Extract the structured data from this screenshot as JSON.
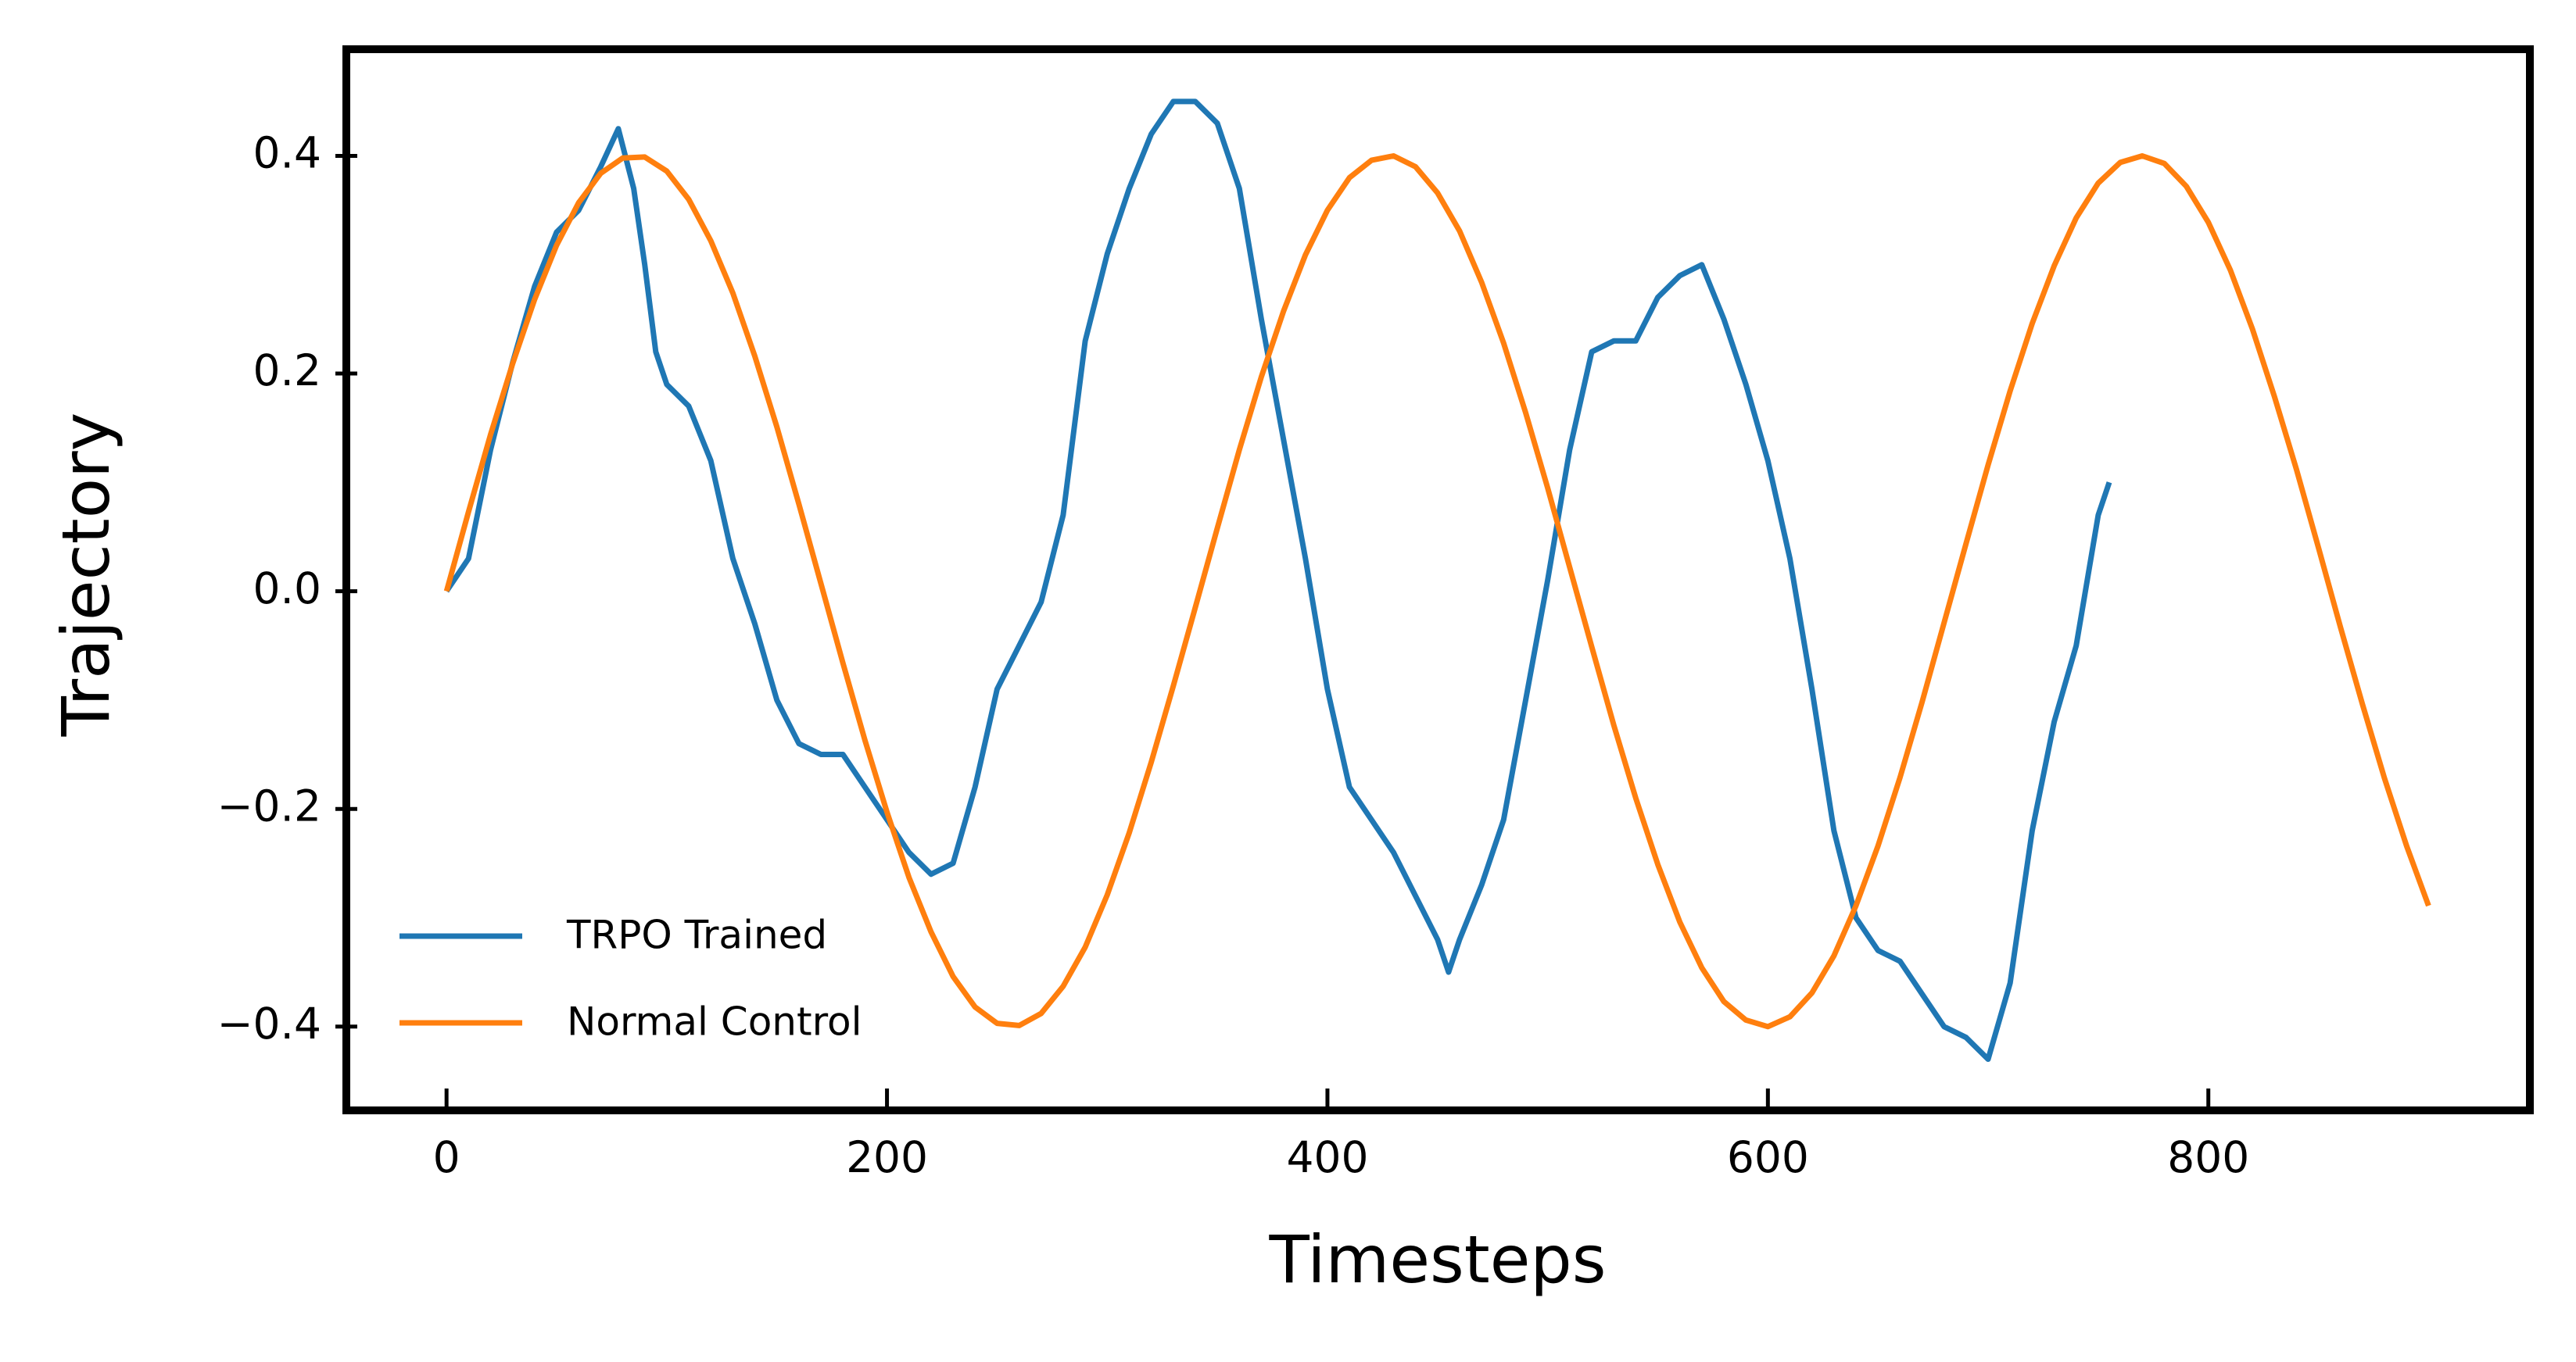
{
  "chart_data": {
    "type": "line",
    "x_label": "Timesteps",
    "y_label": "Trajectory",
    "xlim": [
      -45.5,
      946
    ],
    "ylim": [
      -0.477,
      0.498
    ],
    "xticks": [
      0,
      200,
      400,
      600,
      800
    ],
    "yticks": [
      {
        "value": -0.4,
        "label": "−0.4"
      },
      {
        "value": -0.2,
        "label": "−0.2"
      },
      {
        "value": 0,
        "label": "0.0"
      },
      0.2,
      0.4
    ],
    "grid": false,
    "legend": "lower left",
    "series": [
      {
        "name": "TRPO Trained",
        "color": "#1f77b4",
        "x": [
          0,
          10,
          20,
          30,
          40,
          50,
          60,
          70,
          78,
          85,
          90,
          95,
          100,
          110,
          120,
          130,
          140,
          150,
          160,
          170,
          180,
          190,
          200,
          210,
          220,
          230,
          240,
          250,
          260,
          270,
          280,
          290,
          300,
          310,
          320,
          330,
          340,
          350,
          360,
          370,
          380,
          390,
          400,
          410,
          420,
          430,
          440,
          450,
          455,
          460,
          470,
          480,
          490,
          500,
          510,
          520,
          530,
          540,
          550,
          560,
          570,
          580,
          590,
          600,
          610,
          620,
          630,
          640,
          650,
          660,
          670,
          680,
          690,
          700,
          710,
          720,
          730,
          740,
          750,
          755
        ],
        "values": [
          0.0,
          0.03,
          0.13,
          0.21,
          0.28,
          0.33,
          0.35,
          0.39,
          0.425,
          0.37,
          0.3,
          0.22,
          0.19,
          0.17,
          0.12,
          0.03,
          -0.03,
          -0.1,
          -0.14,
          -0.15,
          -0.15,
          -0.18,
          -0.21,
          -0.24,
          -0.26,
          -0.25,
          -0.18,
          -0.09,
          -0.05,
          -0.01,
          0.07,
          0.23,
          0.31,
          0.37,
          0.42,
          0.45,
          0.45,
          0.43,
          0.37,
          0.25,
          0.14,
          0.03,
          -0.09,
          -0.18,
          -0.21,
          -0.24,
          -0.28,
          -0.32,
          -0.35,
          -0.32,
          -0.27,
          -0.21,
          -0.1,
          0.01,
          0.13,
          0.22,
          0.23,
          0.23,
          0.27,
          0.29,
          0.3,
          0.25,
          0.19,
          0.12,
          0.03,
          -0.09,
          -0.22,
          -0.3,
          -0.33,
          -0.34,
          -0.37,
          -0.4,
          -0.41,
          -0.43,
          -0.36,
          -0.22,
          -0.12,
          -0.05,
          0.07,
          0.1
        ]
      },
      {
        "name": "Normal Control",
        "color": "#ff7f0e",
        "x": [
          0,
          10,
          20,
          30,
          40,
          50,
          60,
          70,
          80,
          90,
          100,
          110,
          120,
          130,
          140,
          150,
          160,
          170,
          180,
          190,
          200,
          210,
          220,
          230,
          240,
          250,
          260,
          270,
          280,
          290,
          300,
          310,
          320,
          330,
          340,
          350,
          360,
          370,
          380,
          390,
          400,
          410,
          420,
          430,
          440,
          450,
          460,
          470,
          480,
          490,
          500,
          510,
          520,
          530,
          540,
          550,
          560,
          570,
          580,
          590,
          600,
          610,
          620,
          630,
          640,
          650,
          660,
          670,
          680,
          690,
          700,
          710,
          720,
          730,
          740,
          750,
          760,
          770,
          780,
          790,
          800,
          810,
          820,
          830,
          840,
          850,
          860,
          870,
          880,
          890,
          900
        ],
        "values": [
          0,
          0.073,
          0.144,
          0.209,
          0.268,
          0.318,
          0.357,
          0.384,
          0.398,
          0.399,
          0.386,
          0.36,
          0.322,
          0.274,
          0.216,
          0.151,
          0.08,
          0.007,
          -0.066,
          -0.137,
          -0.203,
          -0.263,
          -0.313,
          -0.354,
          -0.382,
          -0.397,
          -0.399,
          -0.388,
          -0.363,
          -0.327,
          -0.279,
          -0.222,
          -0.157,
          -0.087,
          -0.015,
          0.058,
          0.13,
          0.197,
          0.257,
          0.309,
          0.35,
          0.38,
          0.396,
          0.4,
          0.39,
          0.366,
          0.331,
          0.284,
          0.228,
          0.164,
          0.095,
          0.022,
          -0.051,
          -0.123,
          -0.19,
          -0.251,
          -0.304,
          -0.346,
          -0.377,
          -0.394,
          -0.4,
          -0.391,
          -0.369,
          -0.335,
          -0.289,
          -0.234,
          -0.171,
          -0.102,
          -0.029,
          0.044,
          0.116,
          0.184,
          0.246,
          0.299,
          0.343,
          0.375,
          0.394,
          0.4,
          0.393,
          0.372,
          0.339,
          0.295,
          0.241,
          0.179,
          0.112,
          0.04,
          -0.033,
          -0.104,
          -0.172,
          -0.234,
          -0.289
        ]
      }
    ]
  }
}
